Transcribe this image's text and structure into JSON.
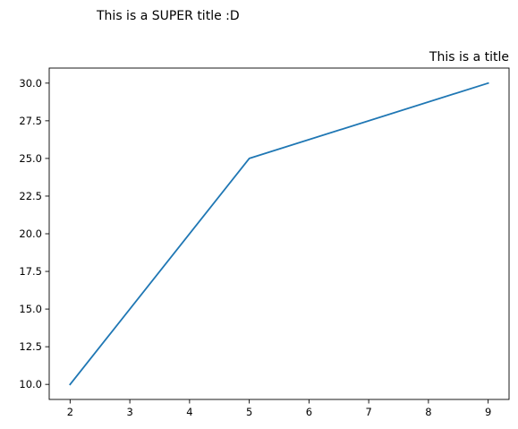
{
  "suptitle": "This is a SUPER title :D",
  "chart_data": {
    "type": "line",
    "title": "This is a title",
    "title_loc": "right",
    "xlabel": "",
    "ylabel": "",
    "x": [
      2,
      5,
      9
    ],
    "series": [
      {
        "values": [
          10,
          25,
          30
        ],
        "color": "#1f77b4"
      }
    ],
    "xlim": [
      1.65,
      9.35
    ],
    "ylim": [
      9.0,
      31.0
    ],
    "xticks": [
      2,
      3,
      4,
      5,
      6,
      7,
      8,
      9
    ],
    "xtick_labels": [
      "2",
      "3",
      "4",
      "5",
      "6",
      "7",
      "8",
      "9"
    ],
    "yticks": [
      10.0,
      12.5,
      15.0,
      17.5,
      20.0,
      22.5,
      25.0,
      27.5,
      30.0
    ],
    "ytick_labels": [
      "10.0",
      "12.5",
      "15.0",
      "17.5",
      "20.0",
      "22.5",
      "25.0",
      "27.5",
      "30.0"
    ],
    "grid": false,
    "legend": false
  }
}
